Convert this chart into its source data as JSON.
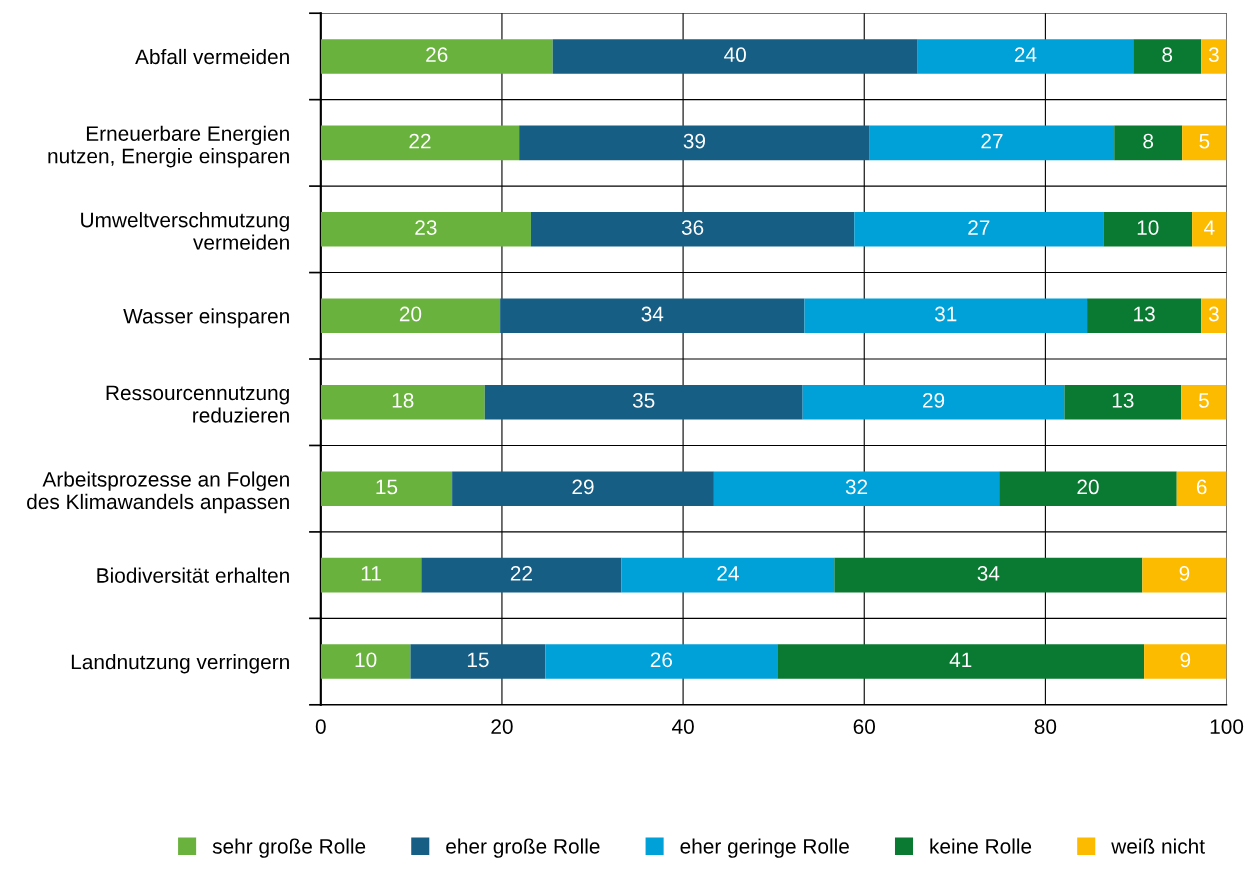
{
  "chart_data": {
    "type": "bar",
    "orientation": "horizontal",
    "stacked": true,
    "categories": [
      "Abfall vermeiden",
      "Erneuerbare Energien\nnutzen, Energie einsparen",
      "Umweltverschmutzung\nvermeiden",
      "Wasser einsparen",
      "Ressourcennutzung\nreduzieren",
      "Arbeitsprozesse an Folgen\ndes Klimawandels anpassen",
      "Biodiversität erhalten",
      "Landnutzung verringern"
    ],
    "series": [
      {
        "name": "sehr große Rolle",
        "color": "#6ab23e",
        "values": [
          25.6,
          21.9,
          23.2,
          19.8,
          18.1,
          14.5,
          11.1,
          9.9
        ],
        "value_labels": [
          "26",
          "22",
          "23",
          "20",
          "18",
          "15",
          "11",
          "10"
        ]
      },
      {
        "name": "eher große Rolle",
        "color": "#175e85",
        "values": [
          40.3,
          38.7,
          35.7,
          33.6,
          35.1,
          28.9,
          22.1,
          14.9
        ],
        "value_labels": [
          "40",
          "39",
          "36",
          "34",
          "35",
          "29",
          "22",
          "15"
        ]
      },
      {
        "name": "eher geringe Rolle",
        "color": "#00a0d8",
        "values": [
          23.8,
          27.0,
          27.5,
          31.2,
          28.9,
          31.5,
          23.5,
          25.6
        ],
        "value_labels": [
          "24",
          "27",
          "27",
          "31",
          "29",
          "32",
          "24",
          "26"
        ]
      },
      {
        "name": "keine Rolle",
        "color": "#0a7a32",
        "values": [
          7.5,
          7.5,
          9.8,
          12.6,
          12.9,
          19.6,
          34.0,
          40.5
        ],
        "value_labels": [
          "8",
          "8",
          "10",
          "13",
          "13",
          "20",
          "34",
          "41"
        ]
      },
      {
        "name": "weiß nicht",
        "color": "#fdbb00",
        "values": [
          2.8,
          4.9,
          3.8,
          2.8,
          5.0,
          5.5,
          9.3,
          9.1
        ],
        "value_labels": [
          "3",
          "5",
          "4",
          "3",
          "5",
          "6",
          "9",
          "9"
        ]
      }
    ],
    "xlim": [
      0,
      100
    ],
    "xticks": [
      0,
      20,
      40,
      60,
      80,
      100
    ],
    "grid": true,
    "legend": "bottom"
  }
}
